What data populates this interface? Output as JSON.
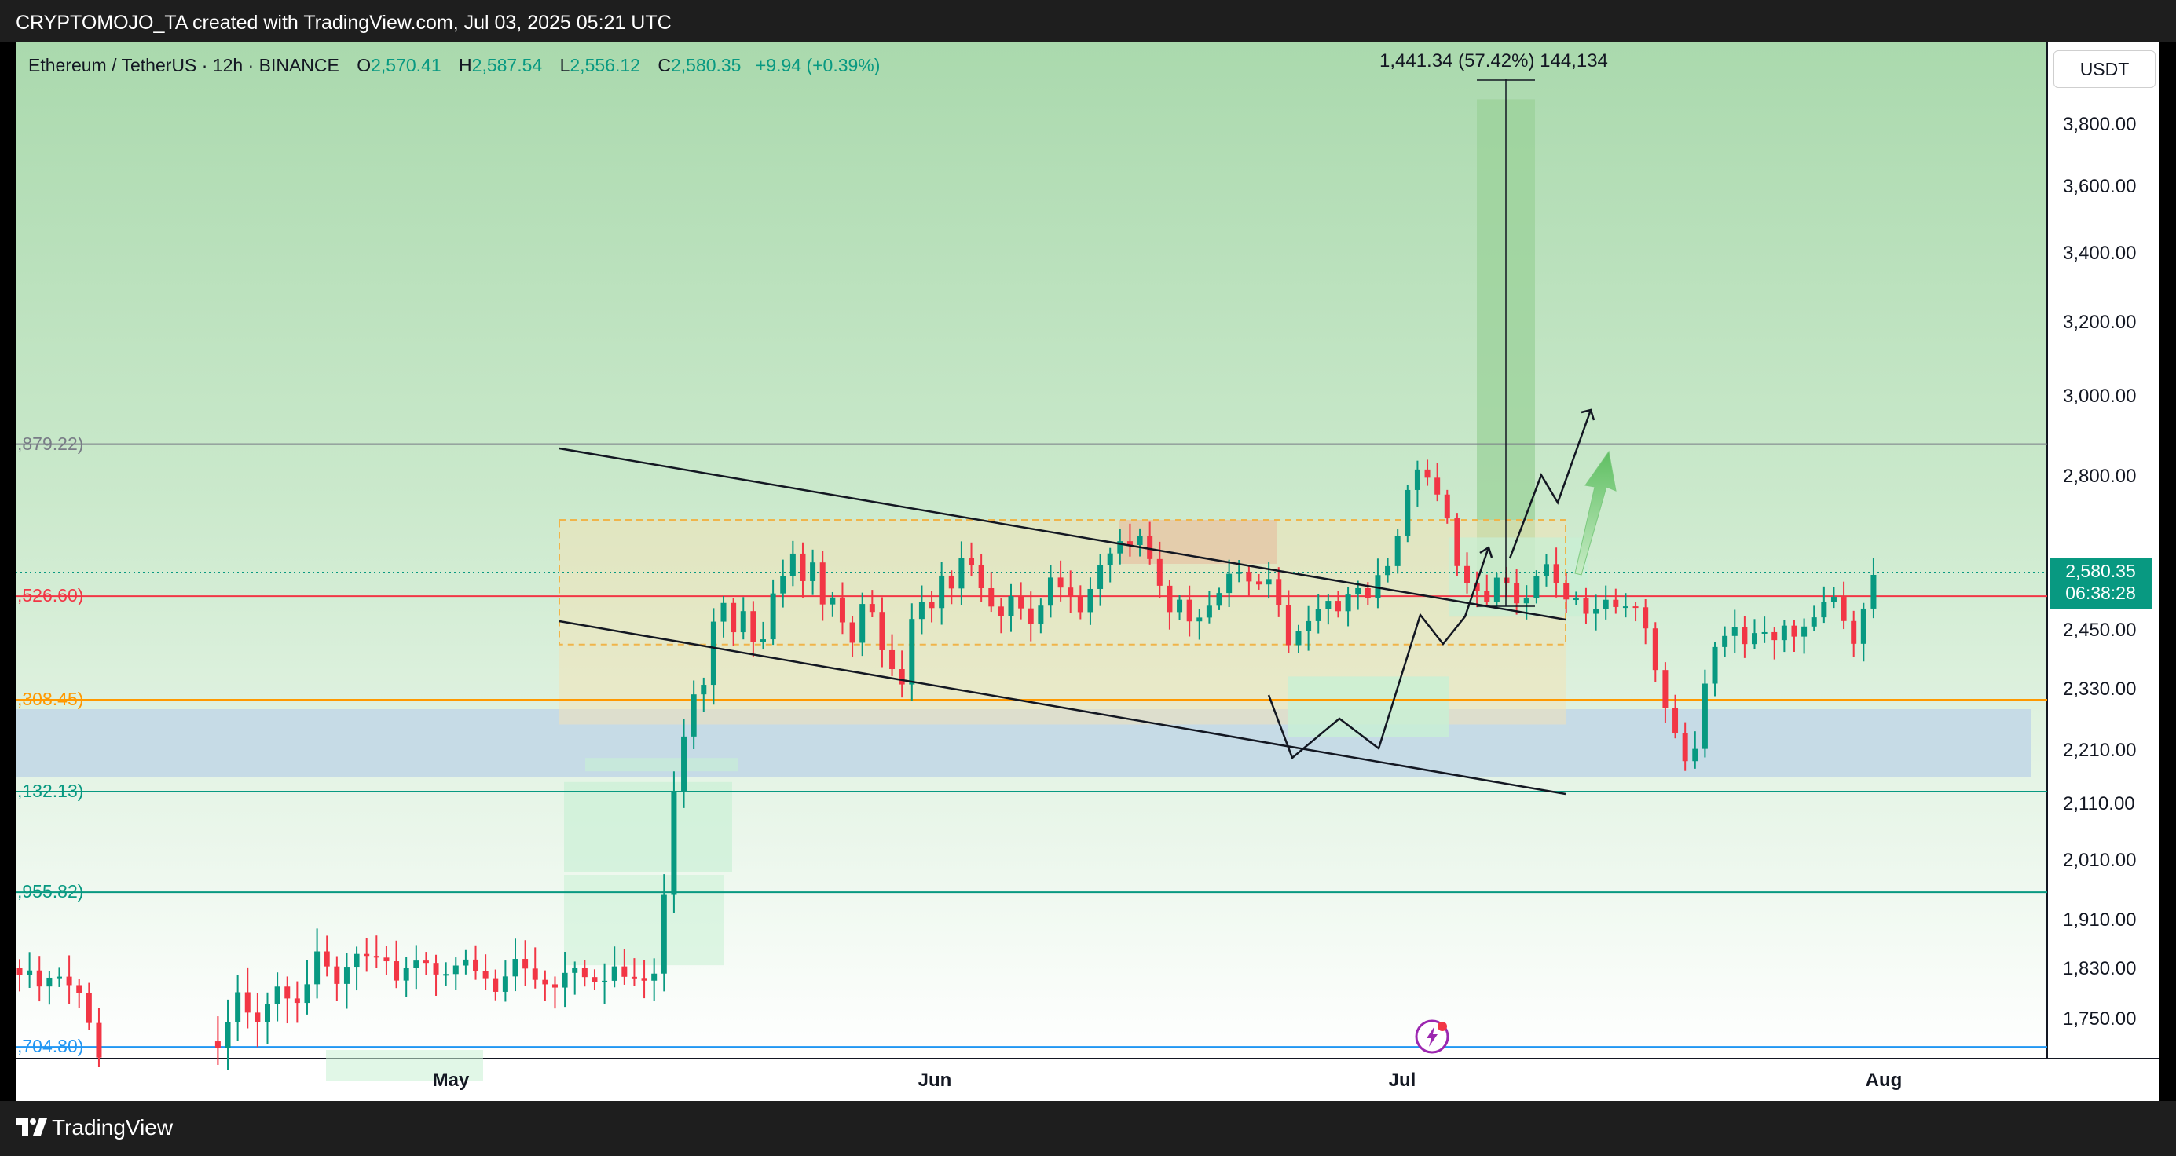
{
  "header": {
    "title": "CRYPTOMOJO_TA created with TradingView.com, Jul 03, 2025 05:21 UTC"
  },
  "footer": {
    "brand": "TradingView"
  },
  "legend": {
    "symbol": "Ethereum / TetherUS · 12h · BINANCE",
    "o_label": "O",
    "o_value": "2,570.41",
    "h_label": "H",
    "h_value": "2,587.54",
    "l_label": "L",
    "l_value": "2,556.12",
    "c_label": "C",
    "c_value": "2,580.35",
    "change": "+9.94 (+0.39%)"
  },
  "currency": "USDT",
  "price_tag": {
    "price": "2,580.35",
    "countdown": "06:38:28"
  },
  "measure": {
    "label": "1,441.34 (57.42%) 144,134"
  },
  "levels": [
    {
      "label": ",879.22)",
      "color": "#787b86"
    },
    {
      "label": ",526.60)",
      "color": "#f23645"
    },
    {
      "label": ",308.45)",
      "color": "#ff9800"
    },
    {
      "label": ",132.13)",
      "color": "#089981"
    },
    {
      "label": ",955.82)",
      "color": "#089981"
    },
    {
      "label": ",704.80)",
      "color": "#2196f3"
    }
  ],
  "colors": {
    "up": "#089981",
    "down": "#f23645",
    "accent": "#089981"
  },
  "icons": {
    "logo": "tradingview-logo-icon",
    "lightning": "lightning-icon"
  },
  "chart_data": {
    "type": "candlestick",
    "y_axis": {
      "ticks": [
        {
          "label": "3,800.00"
        },
        {
          "label": "3,600.00"
        },
        {
          "label": "3,400.00"
        },
        {
          "label": "3,200.00"
        },
        {
          "label": "3,000.00"
        },
        {
          "label": "2,800.00"
        },
        {
          "label": "2,450.00"
        },
        {
          "label": "2,330.00"
        },
        {
          "label": "2,210.00"
        },
        {
          "label": "2,110.00"
        },
        {
          "label": "2,010.00"
        },
        {
          "label": "1,910.00"
        },
        {
          "label": "1,830.00"
        },
        {
          "label": "1,750.00"
        }
      ]
    },
    "x_axis": {
      "ticks": [
        {
          "label": "May"
        },
        {
          "label": "Jun"
        },
        {
          "label": "Jul"
        },
        {
          "label": "Aug"
        }
      ]
    },
    "last_close": 2580.35,
    "levels": [
      2879.22,
      2526.6,
      2308.45,
      2132.13,
      1955.82,
      1704.8
    ]
  }
}
